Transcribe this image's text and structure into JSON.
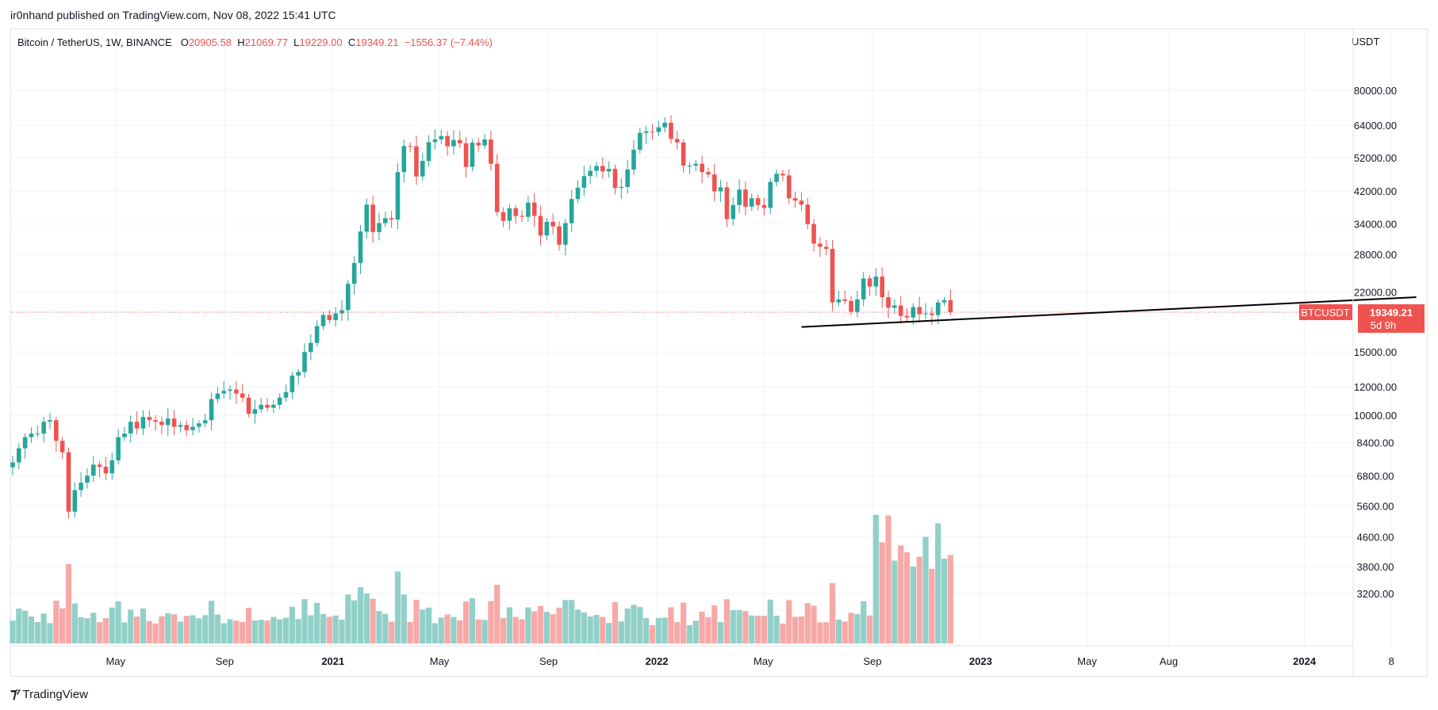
{
  "header": {
    "published": "ir0nhand published on TradingView.com, Nov 08, 2022 15:41 UTC"
  },
  "footer": {
    "brand": "TradingView",
    "logo_icon": "tradingview-logo-icon"
  },
  "legend": {
    "symbol": "Bitcoin / TetherUS, 1W, BINANCE",
    "o_label": "O",
    "o_value": "20905.58",
    "h_label": "H",
    "h_value": "21069.77",
    "l_label": "L",
    "l_value": "19229.00",
    "c_label": "C",
    "c_value": "19349.21",
    "change": "−1556.37 (−7.44%)"
  },
  "colors": {
    "up": "#26a69a",
    "down": "#ef5350",
    "vol_up": "#91d0c8",
    "vol_down": "#f6a9a7",
    "grid": "#f0f3fa",
    "trendline": "#000000"
  },
  "chart_data": {
    "type": "candlestick",
    "title": "Bitcoin / TetherUS, 1W, BINANCE",
    "y_unit": "USDT",
    "y_scale": "log",
    "ylim": [
      2600,
      95000
    ],
    "y_ticks": [
      "80000.00",
      "64000.00",
      "52000.00",
      "42000.00",
      "34000.00",
      "28000.00",
      "22000.00",
      "15000.00",
      "12000.00",
      "10000.00",
      "8400.00",
      "6800.00",
      "5600.00",
      "4600.00",
      "3800.00",
      "3200.00"
    ],
    "x_ticks": [
      "May",
      "Sep",
      "2021",
      "May",
      "Sep",
      "2022",
      "May",
      "Sep",
      "2023",
      "May",
      "Aug",
      "2024",
      "8"
    ],
    "x_ticks_bold": [
      "2021",
      "2022",
      "2023",
      "2024"
    ],
    "grid": true,
    "price_label": {
      "symbol": "BTCUSDT",
      "value": "19349.21",
      "countdown": "5d 9h"
    },
    "trendline": {
      "from": [
        "2022-06-13",
        17600
      ],
      "to": [
        "2024-05-06",
        21300
      ]
    },
    "weeks_start": "2020-01-06",
    "closes": [
      7400,
      8100,
      8700,
      8900,
      8900,
      9600,
      9700,
      8500,
      7900,
      5400,
      6200,
      6500,
      6800,
      7300,
      7200,
      6900,
      7500,
      8700,
      8900,
      9600,
      9200,
      9900,
      9700,
      9600,
      9400,
      9800,
      9300,
      9400,
      9100,
      9300,
      9500,
      9700,
      11100,
      11500,
      11700,
      11800,
      11500,
      11200,
      10100,
      10400,
      10700,
      10500,
      10700,
      11200,
      11600,
      12900,
      13200,
      15000,
      15900,
      17700,
      19000,
      18400,
      19200,
      19600,
      23200,
      26500,
      32400,
      38500,
      32300,
      34200,
      35300,
      35000,
      47400,
      56000,
      55900,
      46100,
      50900,
      57400,
      58400,
      59700,
      55900,
      58200,
      57000,
      49000,
      57200,
      56200,
      58400,
      50000,
      36700,
      34700,
      37600,
      35800,
      35600,
      39000,
      35800,
      31600,
      34500,
      33500,
      29800,
      34200,
      39900,
      42900,
      46200,
      47800,
      49300,
      47600,
      48400,
      42800,
      43100,
      48200,
      54700,
      60900,
      61500,
      61300,
      63100,
      65000,
      58600,
      57300,
      49400,
      49400,
      50000,
      47400,
      46700,
      41900,
      43000,
      35100,
      38400,
      42400,
      38000,
      40100,
      38400,
      37700,
      44500,
      46900,
      46400,
      40100,
      39500,
      38500,
      34000,
      30000,
      29400,
      29000,
      20600,
      21000,
      20800,
      19400,
      21000,
      24000,
      22800,
      24300,
      21300,
      19900,
      20200,
      18900,
      18700,
      20000,
      19100,
      19200,
      19000,
      20600,
      20900,
      19349
    ]
  }
}
